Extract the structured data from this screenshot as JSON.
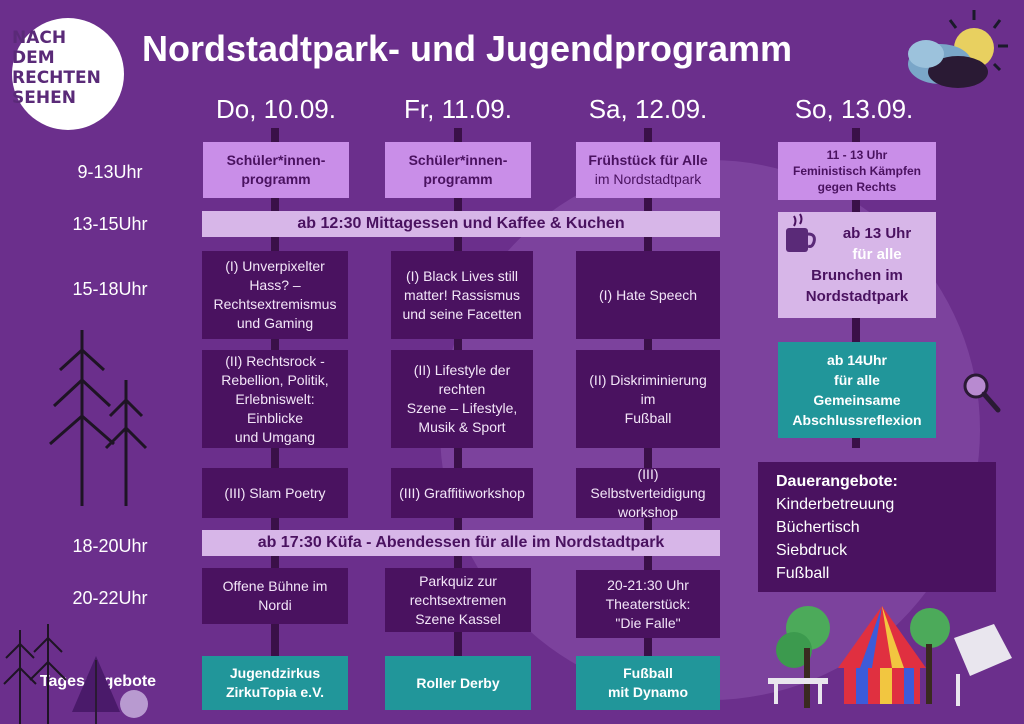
{
  "title": "Nordstadtpark- und Jugendprogramm",
  "logo": [
    "NACH",
    "DEM",
    "RECHTEN",
    "SEHEN"
  ],
  "days": [
    "Do, 10.09.",
    "Fr, 11.09.",
    "Sa, 12.09.",
    "So, 13.09."
  ],
  "times": [
    "9-13Uhr",
    "13-15Uhr",
    "15-18Uhr",
    "18-20Uhr",
    "20-22Uhr",
    "Tagesangebote"
  ],
  "row1": {
    "do": [
      "Schüler*innen-",
      "programm"
    ],
    "fr": [
      "Schüler*innen-",
      "programm"
    ],
    "sa_title": "Frühstück für Alle",
    "sa_sub": "im Nordstadtpark",
    "so": [
      "11 - 13 Uhr",
      "Feministisch Kämpfen",
      "gegen Rechts"
    ]
  },
  "lunch_band": "ab 12:30 Mittagessen und Kaffee & Kuchen",
  "brunch": {
    "line1": "ab 13 Uhr",
    "line2": "für alle",
    "line3": "Brunchen im",
    "line4": "Nordstadtpark"
  },
  "workshops": {
    "do1": [
      "(I) Unverpixelter",
      "Hass? –",
      "Rechtsextremismus",
      "und Gaming"
    ],
    "fr1": [
      "(I) Black Lives still",
      "matter! Rassismus",
      "und seine Facetten"
    ],
    "sa1": [
      "(I) Hate Speech"
    ],
    "do2": [
      "(II) Rechtsrock -",
      "Rebellion, Politik,",
      "Erlebniswelt: Einblicke",
      "und Umgang"
    ],
    "fr2": [
      "(II)  Lifestyle der",
      "rechten",
      "Szene – Lifestyle,",
      "Musik & Sport"
    ],
    "sa2": [
      "(II) Diskriminierung im",
      "Fußball"
    ],
    "do3": [
      "(III) Slam Poetry"
    ],
    "fr3": [
      "(III) Graffitiworkshop"
    ],
    "sa3": [
      "(III) Selbstverteidigung",
      "workshop"
    ]
  },
  "reflexion": [
    "ab 14Uhr",
    "für alle",
    "Gemeinsame",
    "Abschlussreflexion"
  ],
  "dinner_band": "ab 17:30 Küfa - Abendessen für alle im Nordstadtpark",
  "evening": {
    "do": [
      "Offene Bühne im",
      "Nordi"
    ],
    "fr": [
      "Parkquiz zur",
      "rechtsextremen",
      "Szene Kassel"
    ],
    "sa": [
      "20-21:30 Uhr",
      "Theaterstück:",
      "\"Die Falle\""
    ]
  },
  "tages": {
    "do": [
      "Jugendzirkus",
      "ZirkuTopia e.V."
    ],
    "fr": [
      "Roller Derby"
    ],
    "sa": [
      "Fußball",
      "mit Dynamo"
    ]
  },
  "dauer": {
    "title": "Dauerangebote:",
    "items": [
      "Kinderbetreuung",
      "Büchertisch",
      "Siebdruck",
      "Fußball"
    ]
  },
  "colors": {
    "background": "#6b2f8c",
    "dark_box": "#4a1260",
    "lilac_box": "#c98ee8",
    "teal_box": "#21969a",
    "band": "#d7b6e8"
  },
  "icons": [
    "cup-icon",
    "magnifier-icon",
    "tree-icon",
    "circus-tent-icon",
    "sun-cloud-icon"
  ]
}
